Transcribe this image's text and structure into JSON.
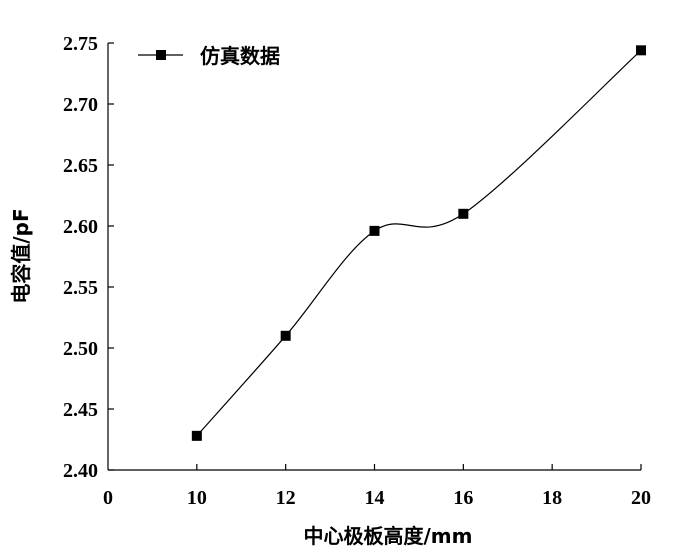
{
  "chart_data": {
    "type": "line",
    "xlabel": "中心极板高度/mm",
    "ylabel": "电容值/pF",
    "xlim": [
      8,
      20
    ],
    "ylim": [
      2.4,
      2.75
    ],
    "xticks": [
      "0",
      "10",
      "12",
      "14",
      "16",
      "18",
      "20"
    ],
    "yticks": [
      "2.40",
      "2.45",
      "2.50",
      "2.55",
      "2.60",
      "2.65",
      "2.70",
      "2.75"
    ],
    "series": [
      {
        "name": "仿真数据",
        "x": [
          10,
          12,
          14,
          16,
          20
        ],
        "values": [
          2.428,
          2.51,
          2.596,
          2.61,
          2.744
        ],
        "marker": "square",
        "line": "smooth",
        "color": "#000000"
      }
    ],
    "legend_position": "top-left",
    "grid": false
  }
}
